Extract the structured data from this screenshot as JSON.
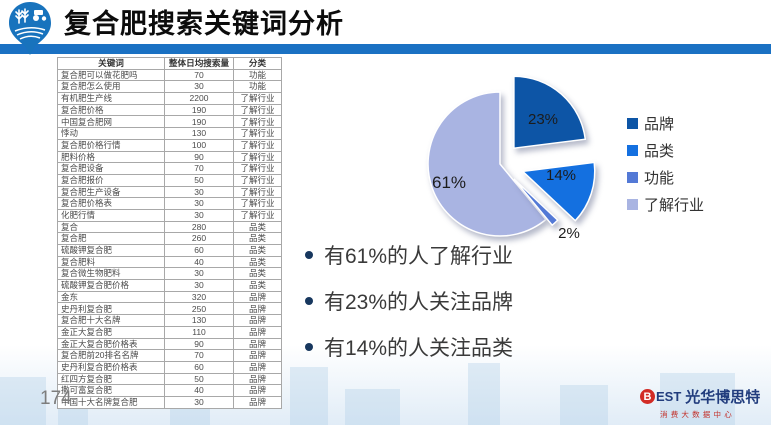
{
  "header": {
    "title": "复合肥搜索关键词分析"
  },
  "table": {
    "headers": [
      "关键词",
      "整体日均搜索量",
      "分类"
    ],
    "rows": [
      [
        "复合肥可以做花肥吗",
        "70",
        "功能"
      ],
      [
        "复合肥怎么使用",
        "30",
        "功能"
      ],
      [
        "有机肥生产线",
        "2200",
        "了解行业"
      ],
      [
        "复合肥价格",
        "190",
        "了解行业"
      ],
      [
        "中国复合肥网",
        "190",
        "了解行业"
      ],
      [
        "悸动",
        "130",
        "了解行业"
      ],
      [
        "复合肥价格行情",
        "100",
        "了解行业"
      ],
      [
        "肥料价格",
        "90",
        "了解行业"
      ],
      [
        "复合肥设备",
        "70",
        "了解行业"
      ],
      [
        "复合肥报价",
        "50",
        "了解行业"
      ],
      [
        "复合肥生产设备",
        "30",
        "了解行业"
      ],
      [
        "复合肥价格表",
        "30",
        "了解行业"
      ],
      [
        "化肥行情",
        "30",
        "了解行业"
      ],
      [
        "复合",
        "280",
        "品类"
      ],
      [
        "复合肥",
        "260",
        "品类"
      ],
      [
        "硫酸钾复合肥",
        "60",
        "品类"
      ],
      [
        "复合肥料",
        "40",
        "品类"
      ],
      [
        "复合微生物肥料",
        "30",
        "品类"
      ],
      [
        "硫酸钾复合肥价格",
        "30",
        "品类"
      ],
      [
        "金东",
        "320",
        "品牌"
      ],
      [
        "史丹利复合肥",
        "250",
        "品牌"
      ],
      [
        "复合肥十大名牌",
        "130",
        "品牌"
      ],
      [
        "金正大复合肥",
        "110",
        "品牌"
      ],
      [
        "金正大复合肥价格表",
        "90",
        "品牌"
      ],
      [
        "复合肥前20排名名牌",
        "70",
        "品牌"
      ],
      [
        "史丹利复合肥价格表",
        "60",
        "品牌"
      ],
      [
        "红四方复合肥",
        "50",
        "品牌"
      ],
      [
        "撒可富复合肥",
        "40",
        "品牌"
      ],
      [
        "中国十大名牌复合肥",
        "30",
        "品牌"
      ]
    ]
  },
  "chart_data": {
    "type": "pie",
    "categories": [
      "品牌",
      "品类",
      "功能",
      "了解行业"
    ],
    "values": [
      23,
      14,
      2,
      61
    ],
    "slice_labels": [
      "23%",
      "14%",
      "2%",
      "61%"
    ],
    "colors": [
      "#0d55a6",
      "#1470e0",
      "#5379d6",
      "#a9b4e2"
    ],
    "legend_position": "right",
    "exploded": true
  },
  "bullets": {
    "items": [
      "有61%的人了解行业",
      "有23%的人关注品牌",
      "有14%的人关注品类"
    ]
  },
  "footer": {
    "page_number": "174",
    "brand_b": "B",
    "brand_est": "EST",
    "brand_name": "光华博思特",
    "brand_subtitle": "消费大数据中心"
  }
}
